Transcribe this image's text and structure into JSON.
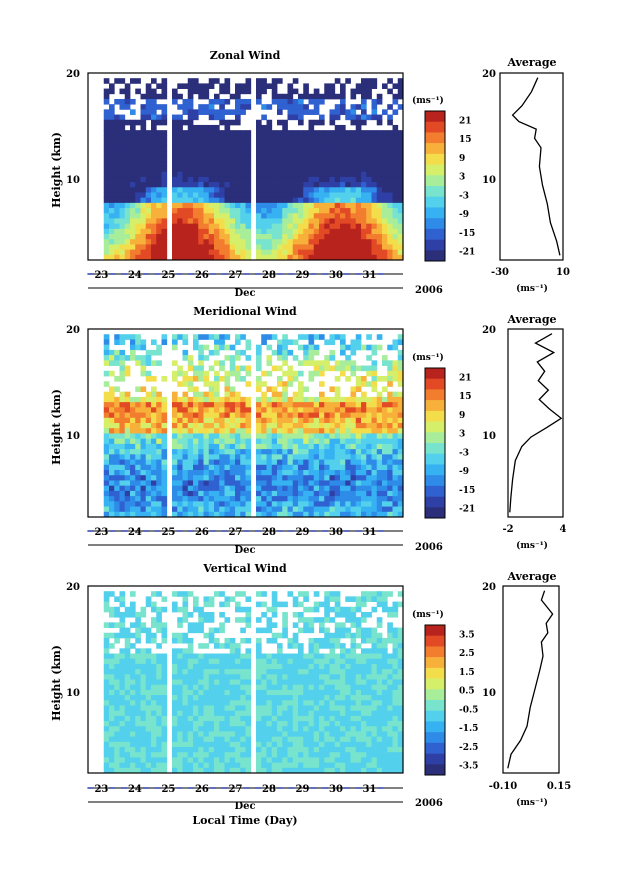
{
  "colors": {
    "scale": [
      "#2b2f7a",
      "#2e3fa6",
      "#2f61d1",
      "#2f8be8",
      "#36b2f2",
      "#52d0ec",
      "#78e4cd",
      "#a8ee9a",
      "#d6ef6a",
      "#f4dd4a",
      "#f7b03a",
      "#f27d2e",
      "#e14a25",
      "#b8241d"
    ]
  },
  "chart_data": [
    {
      "type": "heatmap",
      "title": "Zonal Wind",
      "ylabel": "Height (km)",
      "yticks": [
        "20",
        "10"
      ],
      "ylim": [
        0,
        20
      ],
      "xticks": [
        "23",
        "24",
        "25",
        "26",
        "27",
        "28",
        "29",
        "30",
        "31"
      ],
      "xlabel_month": "Dec",
      "year": "2006",
      "colorbar": {
        "unit": "(ms⁻¹)",
        "ticks": [
          "21",
          "15",
          "9",
          "3",
          "-3",
          "-9",
          "-15",
          "-21"
        ],
        "range": [
          -24,
          24
        ]
      },
      "profile": {
        "title": "Average",
        "xticks": [
          "-30",
          "10"
        ],
        "xlim": [
          -30,
          10
        ],
        "xlabel": "(ms⁻¹)",
        "heights": [
          0.5,
          2,
          4,
          6,
          8,
          10,
          12,
          13,
          14,
          14.8,
          15.5,
          16.5,
          18,
          19.5
        ],
        "values": [
          8,
          6,
          2,
          0,
          -3,
          -5,
          -4,
          -8,
          -7,
          -18,
          -22,
          -16,
          -10,
          -6
        ]
      }
    },
    {
      "type": "heatmap",
      "title": "Meridional Wind",
      "ylabel": "Height (km)",
      "yticks": [
        "20",
        "10"
      ],
      "ylim": [
        0,
        20
      ],
      "xticks": [
        "23",
        "24",
        "25",
        "26",
        "27",
        "28",
        "29",
        "30",
        "31"
      ],
      "xlabel_month": "Dec",
      "year": "2006",
      "colorbar": {
        "unit": "(ms⁻¹)",
        "ticks": [
          "21",
          "15",
          "9",
          "3",
          "-3",
          "-9",
          "-15",
          "-21"
        ],
        "range": [
          -24,
          24
        ]
      },
      "profile": {
        "title": "Average",
        "xticks": [
          "-2",
          "4"
        ],
        "xlim": [
          -2,
          4
        ],
        "xlabel": "(ms⁻¹)",
        "heights": [
          0.5,
          2,
          4,
          6,
          7.5,
          8.5,
          9.5,
          10.5,
          11.5,
          12.5,
          13.5,
          14.5,
          15.5,
          16.5,
          17.5,
          18.5,
          19.5
        ],
        "values": [
          -1.8,
          -1.7,
          -1.5,
          -1.2,
          -0.5,
          0.5,
          2.2,
          3.8,
          2.5,
          1.4,
          2.4,
          1.3,
          2.0,
          1.2,
          3.0,
          1.0,
          2.8
        ]
      }
    },
    {
      "type": "heatmap",
      "title": "Vertical Wind",
      "ylabel": "Height (km)",
      "yticks": [
        "20",
        "10"
      ],
      "ylim": [
        0,
        20
      ],
      "xticks": [
        "23",
        "24",
        "25",
        "26",
        "27",
        "28",
        "29",
        "30",
        "31"
      ],
      "xlabel_month": "Dec",
      "year": "2006",
      "xlabel": "Local Time (Day)",
      "colorbar": {
        "unit": "(ms⁻¹)",
        "ticks": [
          "3.5",
          "2.5",
          "1.5",
          "0.5",
          "-0.5",
          "-1.5",
          "-2.5",
          "-3.5"
        ],
        "range": [
          -4,
          4
        ]
      },
      "profile": {
        "title": "Average",
        "xticks": [
          "-0.10",
          "0.15"
        ],
        "xlim": [
          -0.15,
          0.2
        ],
        "xlabel": "(ms⁻¹)",
        "heights": [
          0.5,
          2,
          3.5,
          5,
          7,
          9,
          11,
          12.5,
          14,
          15,
          16,
          17,
          18.5,
          19.5
        ],
        "values": [
          -0.12,
          -0.1,
          -0.04,
          0.0,
          0.02,
          0.05,
          0.08,
          0.1,
          0.09,
          0.13,
          0.12,
          0.16,
          0.09,
          0.11
        ]
      }
    }
  ]
}
